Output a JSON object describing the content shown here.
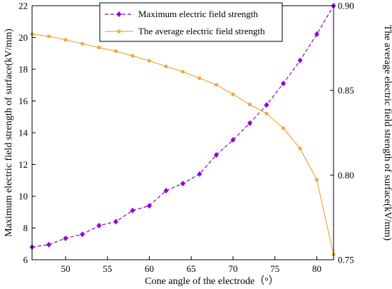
{
  "chart_data": {
    "type": "line",
    "xlabel": "Cone angle of the electrode（°）",
    "ylabel_left": "Maximum electric field strength of surface(kV/mm)",
    "ylabel_right": "The average electric field strength of surface(kV/mm)",
    "xlim": [
      46,
      82
    ],
    "ylim_left": [
      6,
      22
    ],
    "ylim_right": [
      0.75,
      0.9
    ],
    "x_ticks": [
      50,
      55,
      60,
      65,
      70,
      75,
      80
    ],
    "y_ticks_left": [
      6,
      8,
      10,
      12,
      14,
      16,
      18,
      20,
      22
    ],
    "y_ticks_right": [
      0.75,
      0.8,
      0.85,
      0.9
    ],
    "y_tick_labels_right": [
      "0.75",
      "0.80",
      "0.85",
      "0.90"
    ],
    "legend_position": "top-center",
    "series": [
      {
        "name": "Maximum electric field strength",
        "axis": "left",
        "color": "#9400D3",
        "line_style": "dashed",
        "marker": "diamond",
        "x": [
          46,
          48,
          50,
          52,
          54,
          56,
          58,
          60,
          62,
          64,
          66,
          68,
          70,
          72,
          74,
          76,
          78,
          80,
          82
        ],
        "y": [
          6.8,
          6.95,
          7.35,
          7.6,
          8.15,
          8.4,
          9.1,
          9.4,
          10.35,
          10.8,
          11.4,
          12.6,
          13.55,
          14.6,
          15.75,
          17.1,
          18.55,
          20.2,
          22.0
        ]
      },
      {
        "name": "The average electric field strength",
        "axis": "right",
        "color": "#F5A742",
        "line_style": "solid",
        "marker": "circle",
        "x": [
          46,
          48,
          50,
          52,
          54,
          56,
          58,
          60,
          62,
          64,
          66,
          68,
          70,
          72,
          74,
          76,
          78,
          80,
          82
        ],
        "y": [
          0.8832,
          0.8819,
          0.8799,
          0.8776,
          0.8753,
          0.8732,
          0.8704,
          0.8675,
          0.8641,
          0.861,
          0.8572,
          0.8533,
          0.8477,
          0.8417,
          0.8363,
          0.8277,
          0.8157,
          0.7972,
          0.7531
        ]
      }
    ]
  }
}
